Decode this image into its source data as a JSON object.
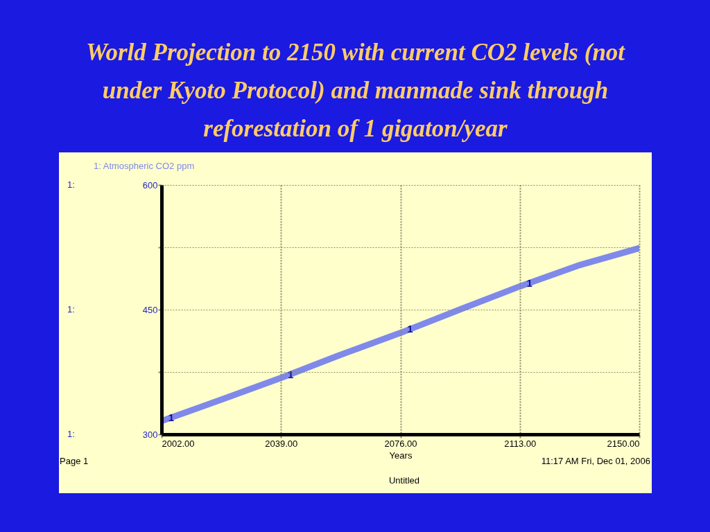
{
  "chart_data": {
    "type": "line",
    "title": "World Projection to 2150 with current CO2 levels (not under Kyoto Protocol) and manmade sink through reforestation of 1 gigaton/year",
    "xlabel": "Years",
    "x": [
      2002,
      2020,
      2039,
      2057,
      2076,
      2095,
      2113,
      2131,
      2150
    ],
    "series": [
      {
        "name": "1: Atmospheric CO2 ppm",
        "color": "#7f89ea",
        "values": [
          316,
          341,
          368,
          395,
          422,
          451,
          478,
          503,
          524
        ]
      }
    ],
    "xlim": [
      2002,
      2150
    ],
    "ylim": [
      300,
      600
    ],
    "xticks": [
      {
        "value": 2002,
        "label": "2002.00"
      },
      {
        "value": 2039,
        "label": "2039.00"
      },
      {
        "value": 2076,
        "label": "2076.00"
      },
      {
        "value": 2113,
        "label": "2113.00"
      },
      {
        "value": 2150,
        "label": "2150.00"
      }
    ],
    "yticks": [
      300,
      {
        "value": 375,
        "label": null
      },
      450,
      {
        "value": 525,
        "label": null
      },
      600
    ],
    "grid": true,
    "legend": "top left",
    "annotations": [
      "1:",
      "1:",
      "1:",
      {
        "text": "1",
        "x": 2005,
        "y": 320
      },
      {
        "text": "1",
        "x": 2042,
        "y": 372
      },
      {
        "text": "1",
        "x": 2079,
        "y": 427
      },
      {
        "text": "1",
        "x": 2116,
        "y": 482
      },
      "Page 1",
      "11:17 AM   Fri, Dec 01, 2006",
      "Untitled"
    ]
  }
}
